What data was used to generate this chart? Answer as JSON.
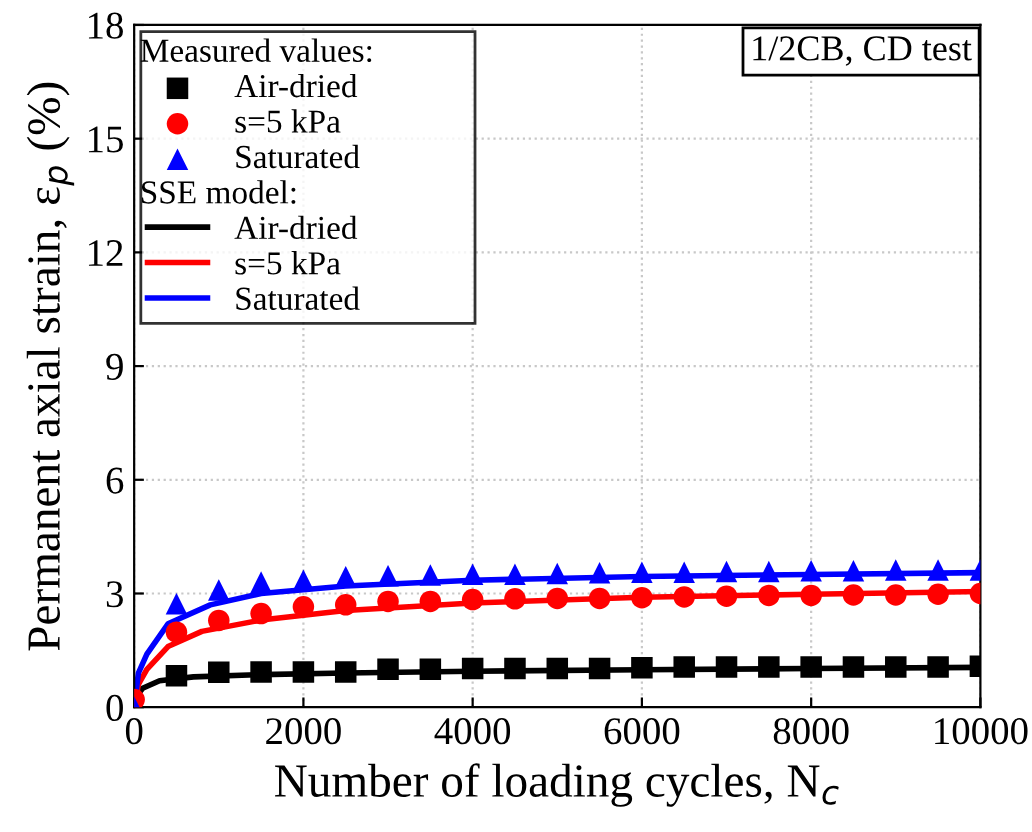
{
  "chart_data": {
    "type": "scatter",
    "xlabel": "Number of loading cycles, N$_{c}$",
    "ylabel": "Permanent axial strain, ε$_{p}$ (%)",
    "legend_title": "Measured values:",
    "annotations": [
      "1/2CB, CD test",
      "SSE model:"
    ],
    "xlim": [
      0,
      10000
    ],
    "ylim": [
      0,
      18
    ],
    "xticks": [
      0,
      2000,
      4000,
      6000,
      8000,
      10000
    ],
    "yticks": [
      0,
      3,
      6,
      9,
      12,
      15,
      18
    ],
    "grid": true,
    "legend": "top left",
    "x": [
      0,
      500,
      1000,
      1500,
      2000,
      2500,
      3000,
      3500,
      4000,
      4500,
      5000,
      5500,
      6000,
      6500,
      7000,
      7500,
      8000,
      8500,
      9000,
      9500,
      10000
    ],
    "series": [
      {
        "name": "Air-dried",
        "color": "#000000",
        "marker": "square",
        "values": [
          null,
          0.83,
          0.92,
          0.93,
          0.93,
          0.93,
          1.0,
          1.0,
          1.02,
          1.02,
          1.02,
          1.02,
          1.04,
          1.06,
          1.06,
          1.06,
          1.06,
          1.06,
          1.06,
          1.06,
          1.08
        ]
      },
      {
        "name": "s=5 kPa",
        "color": "#ff0000",
        "marker": "circle",
        "values": [
          0.2,
          1.98,
          2.29,
          2.47,
          2.65,
          2.7,
          2.79,
          2.79,
          2.84,
          2.86,
          2.87,
          2.87,
          2.89,
          2.91,
          2.93,
          2.95,
          2.95,
          2.96,
          2.96,
          2.98,
          3.0
        ]
      },
      {
        "name": "Saturated",
        "color": "#0000ff",
        "marker": "triangle",
        "values": [
          0.0,
          2.73,
          3.09,
          3.3,
          3.35,
          3.44,
          3.47,
          3.49,
          3.51,
          3.51,
          3.53,
          3.55,
          3.56,
          3.56,
          3.58,
          3.58,
          3.6,
          3.6,
          3.62,
          3.62,
          3.62
        ]
      },
      {
        "name": "Air-dried",
        "type": "line",
        "color": "#000000",
        "x": [
          0,
          50,
          100,
          300,
          700,
          1500,
          2500,
          4000,
          6000,
          8000,
          10000
        ],
        "values": [
          0,
          0.35,
          0.5,
          0.7,
          0.8,
          0.86,
          0.9,
          0.95,
          0.99,
          1.02,
          1.05
        ]
      },
      {
        "name": "s=5 kPa",
        "type": "line",
        "color": "#ff0000",
        "x": [
          0,
          50,
          150,
          400,
          800,
          1500,
          2500,
          4000,
          6000,
          8000,
          10000
        ],
        "values": [
          0,
          0.6,
          1.0,
          1.6,
          2.0,
          2.3,
          2.55,
          2.75,
          2.9,
          2.98,
          3.05
        ]
      },
      {
        "name": "Saturated",
        "type": "line",
        "color": "#0000ff",
        "x": [
          0,
          50,
          150,
          400,
          900,
          1500,
          2500,
          4000,
          6000,
          8000,
          10000
        ],
        "values": [
          0,
          0.9,
          1.4,
          2.2,
          2.7,
          3.0,
          3.2,
          3.35,
          3.45,
          3.5,
          3.55
        ]
      }
    ]
  }
}
